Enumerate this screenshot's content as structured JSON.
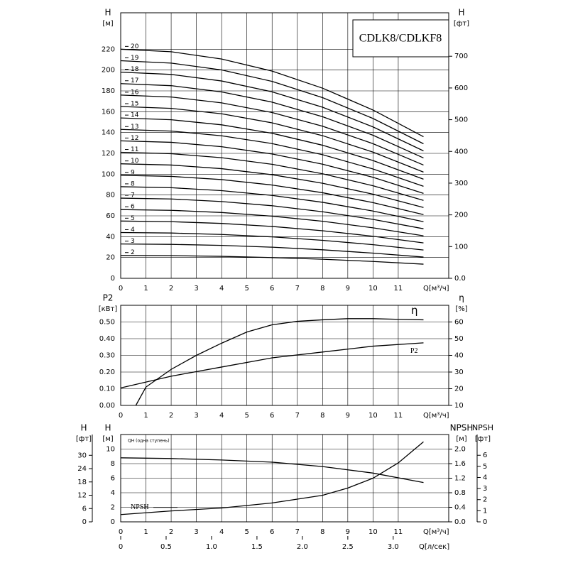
{
  "chart_data": [
    {
      "type": "line",
      "title": "CDLK8/CDLKF8",
      "x": [
        0,
        2,
        4,
        6,
        8,
        10,
        12
      ],
      "xlim": [
        0,
        13
      ],
      "xticks": [
        0,
        1,
        2,
        3,
        4,
        5,
        6,
        7,
        8,
        9,
        10,
        11
      ],
      "xlabel": "Q[м³/ч]",
      "ylim": [
        0,
        255
      ],
      "yticks": [
        0,
        20,
        40,
        60,
        80,
        100,
        120,
        140,
        160,
        180,
        200,
        220
      ],
      "ylabel": "H",
      "yunit": "[м]",
      "y2lim": [
        0,
        837
      ],
      "y2ticks": [
        {
          "value": 0,
          "label": "0.0"
        },
        100,
        200,
        300,
        400,
        500,
        600,
        700
      ],
      "y2label": "H",
      "y2unit": "[фт]",
      "grid": true,
      "series": [
        {
          "name": "2",
          "color": "#000000",
          "values": [
            22,
            21.8,
            21.1,
            19.9,
            18.3,
            16.2,
            13.6
          ]
        },
        {
          "name": "3",
          "color": "#000000",
          "values": [
            33,
            32.6,
            31.6,
            29.9,
            27.4,
            24.2,
            20.4
          ]
        },
        {
          "name": "4",
          "color": "#000000",
          "values": [
            44,
            43.5,
            42.1,
            39.8,
            36.5,
            32.3,
            27.2
          ]
        },
        {
          "name": "5",
          "color": "#000000",
          "values": [
            55,
            54.4,
            52.7,
            49.8,
            45.7,
            40.4,
            34
          ]
        },
        {
          "name": "6",
          "color": "#000000",
          "values": [
            66,
            65.3,
            63.2,
            59.7,
            54.8,
            48.5,
            40.8
          ]
        },
        {
          "name": "7",
          "color": "#000000",
          "values": [
            77,
            76.2,
            73.7,
            69.7,
            63.9,
            56.6,
            47.6
          ]
        },
        {
          "name": "8",
          "color": "#000000",
          "values": [
            88,
            87,
            84.2,
            79.6,
            73,
            64.6,
            54.4
          ]
        },
        {
          "name": "9",
          "color": "#000000",
          "values": [
            99,
            97.9,
            94.8,
            89.6,
            82.2,
            72.7,
            61.2
          ]
        },
        {
          "name": "10",
          "color": "#000000",
          "values": [
            110,
            108.8,
            105.3,
            99.5,
            91.3,
            80.8,
            68
          ]
        },
        {
          "name": "11",
          "color": "#000000",
          "values": [
            121,
            119.7,
            115.8,
            109.5,
            100.4,
            88.9,
            74.8
          ]
        },
        {
          "name": "12",
          "color": "#000000",
          "values": [
            132,
            130.6,
            126.4,
            119.4,
            109.6,
            97,
            81.6
          ]
        },
        {
          "name": "13",
          "color": "#000000",
          "values": [
            143,
            141.4,
            136.9,
            129.4,
            118.7,
            105,
            88.4
          ]
        },
        {
          "name": "14",
          "color": "#000000",
          "values": [
            154,
            152.3,
            147.4,
            139.3,
            127.8,
            113.1,
            95.2
          ]
        },
        {
          "name": "15",
          "color": "#000000",
          "values": [
            165,
            163.2,
            158,
            149.3,
            137,
            121.2,
            102
          ]
        },
        {
          "name": "16",
          "color": "#000000",
          "values": [
            176,
            174.1,
            168.5,
            159.2,
            146.1,
            129.3,
            108.8
          ]
        },
        {
          "name": "17",
          "color": "#000000",
          "values": [
            187,
            185,
            179,
            169.2,
            155.2,
            137.4,
            115.6
          ]
        },
        {
          "name": "18",
          "color": "#000000",
          "values": [
            198,
            195.8,
            189.5,
            179.1,
            164.3,
            145.4,
            122.4
          ]
        },
        {
          "name": "19",
          "color": "#000000",
          "values": [
            209,
            206.7,
            200.1,
            189.1,
            173.5,
            153.5,
            129.2
          ]
        },
        {
          "name": "20",
          "color": "#000000",
          "values": [
            220,
            217.6,
            210.6,
            199,
            182.6,
            161.6,
            136
          ]
        }
      ]
    },
    {
      "type": "line",
      "xlim": [
        0,
        13
      ],
      "xticks": [
        0,
        1,
        2,
        3,
        4,
        5,
        6,
        7,
        8,
        9,
        10,
        11
      ],
      "xlabel": "Q[м³/ч]",
      "ylim": [
        0,
        0.6
      ],
      "yticks": [
        {
          "value": 0,
          "label": "0.00"
        },
        {
          "value": 0.1,
          "label": "0.10"
        },
        {
          "value": 0.2,
          "label": "0.20"
        },
        {
          "value": 0.3,
          "label": "0.30"
        },
        {
          "value": 0.4,
          "label": "0.40"
        },
        {
          "value": 0.5,
          "label": "0.50"
        }
      ],
      "ylabel": "P2",
      "yunit": "[кВт]",
      "y2lim": [
        10,
        70
      ],
      "y2ticks": [
        10,
        20,
        30,
        40,
        50,
        60
      ],
      "y2label": "η",
      "y2unit": "[%]",
      "grid": true,
      "series": [
        {
          "name": "P2",
          "color": "#000000",
          "x": [
            0,
            2,
            4,
            6,
            8,
            10,
            12
          ],
          "values": [
            0.105,
            0.175,
            0.23,
            0.285,
            0.32,
            0.355,
            0.375
          ]
        },
        {
          "name": "η",
          "color": "#000000",
          "axis": "y2",
          "x": [
            0.6,
            1,
            2,
            3,
            4,
            5,
            6,
            7,
            8,
            9,
            10,
            11,
            12
          ],
          "values": [
            10,
            21,
            31.6,
            40,
            47.3,
            54,
            58.3,
            60.4,
            61.3,
            62,
            62,
            61.6,
            61.3
          ]
        }
      ]
    },
    {
      "type": "line",
      "xlim": [
        0,
        13
      ],
      "xticks": [
        0,
        1,
        2,
        3,
        4,
        5,
        6,
        7,
        8,
        9,
        10,
        11
      ],
      "xlabel": "Q[м³/ч]",
      "x2lim": [
        0,
        3.611
      ],
      "x2ticks": [
        0,
        0.5,
        {
          "value": 1,
          "label": "1.0"
        },
        1.5,
        {
          "value": 2,
          "label": "2.0"
        },
        2.5,
        {
          "value": 3,
          "label": "3.0"
        }
      ],
      "x2label": "Q[л/сек]",
      "ylim": [
        0,
        12
      ],
      "yticks": [
        0,
        2,
        4,
        6,
        8,
        10
      ],
      "ylabel": "H",
      "yunit": "[м]",
      "y3lim": [
        0,
        39.37
      ],
      "y3ticks": [
        0,
        6,
        12,
        18,
        24,
        30
      ],
      "y3label": "H",
      "y3unit": "[фт]",
      "y2lim": [
        0,
        2.4
      ],
      "y2ticks": [
        {
          "value": 0,
          "label": "0.0"
        },
        0.4,
        0.8,
        1.2,
        1.6,
        {
          "value": 2,
          "label": "2.0"
        }
      ],
      "y2label": "NPSH",
      "y2unit": "[м]",
      "y4lim": [
        0,
        7.87
      ],
      "y4ticks": [
        0,
        1,
        2,
        3,
        4,
        5,
        6
      ],
      "y4label": "NPSH",
      "y4unit": "[фт]",
      "grid": true,
      "series": [
        {
          "name": "QH (одна ступень)",
          "color": "#000000",
          "x": [
            0,
            2,
            4,
            6,
            8,
            10,
            12
          ],
          "values": [
            8.8,
            8.7,
            8.5,
            8.2,
            7.6,
            6.7,
            5.4
          ]
        },
        {
          "name": "NPSH",
          "color": "#000000",
          "axis": "y2",
          "x": [
            0,
            2,
            4,
            6,
            8,
            9,
            10,
            11,
            12
          ],
          "values": [
            0.2,
            0.3,
            0.38,
            0.52,
            0.73,
            0.93,
            1.2,
            1.62,
            2.2
          ]
        }
      ]
    }
  ]
}
